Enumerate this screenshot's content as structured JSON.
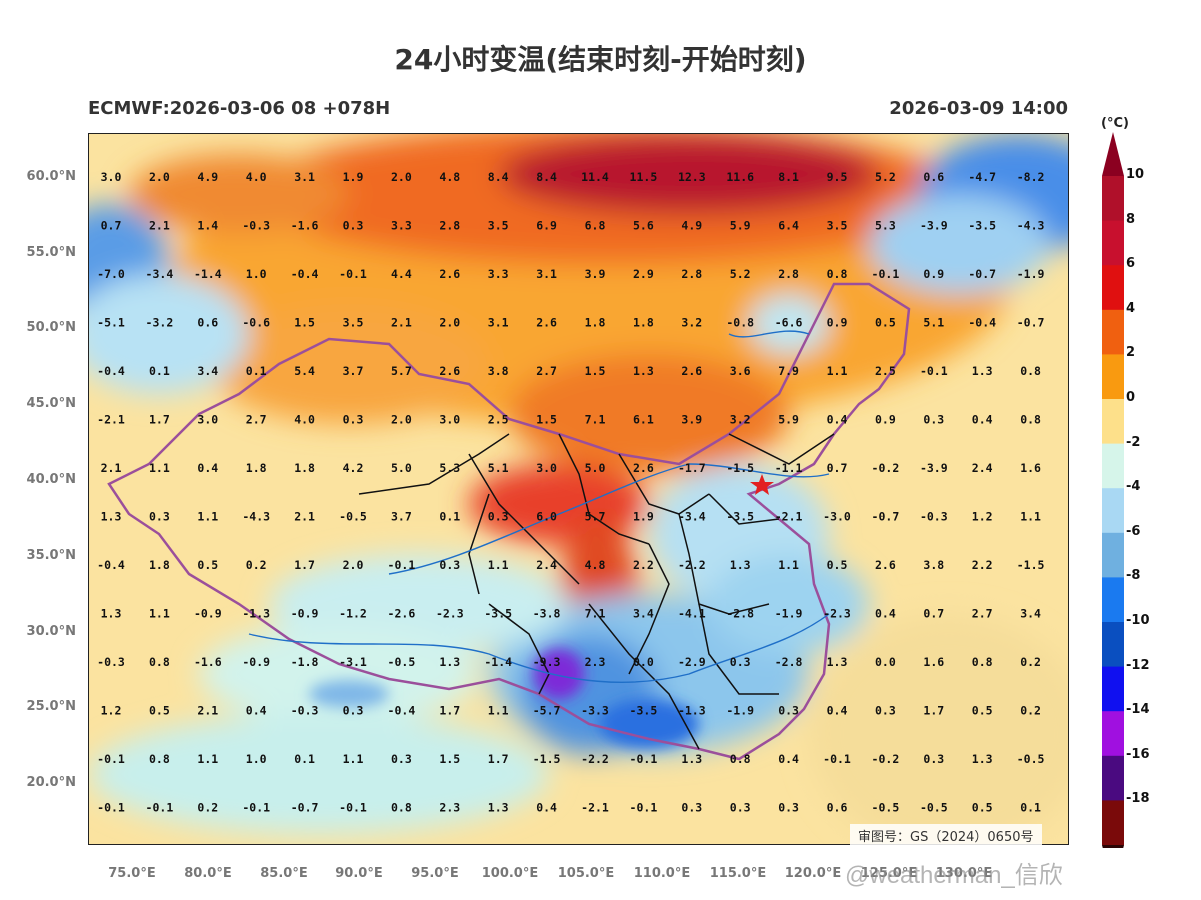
{
  "title": "24小时变温(结束时刻-开始时刻)",
  "subtitle_left": "ECMWF:2026-03-06 08 +078H",
  "subtitle_right": "2026-03-09 14:00",
  "lat_labels": [
    "60.0°N",
    "55.0°N",
    "50.0°N",
    "45.0°N",
    "40.0°N",
    "35.0°N",
    "30.0°N",
    "25.0°N",
    "20.0°N"
  ],
  "lon_labels": [
    "75.0°E",
    "80.0°E",
    "85.0°E",
    "90.0°E",
    "95.0°E",
    "100.0°E",
    "105.0°E",
    "110.0°E",
    "115.0°E",
    "120.0°E",
    "125.0°E",
    "130.0°E"
  ],
  "colorbar": {
    "unit": "(°C)",
    "labels": [
      "10",
      "8",
      "6",
      "4",
      "2",
      "0",
      "-2",
      "-4",
      "-6",
      "-8",
      "-10",
      "-12",
      "-14",
      "-16",
      "-18"
    ],
    "colors": [
      "#b0102a",
      "#c8102e",
      "#e01010",
      "#f06010",
      "#f99a10",
      "#fde08a",
      "#d6f5ea",
      "#a9d8f3",
      "#6fb0e0",
      "#1a7af0",
      "#0a4fc0",
      "#1010f0",
      "#a010e0",
      "#4a0a80",
      "#7a0a0a"
    ],
    "top_color": "#8b0020",
    "bottom_color": "#2b0505"
  },
  "grid_values": [
    [
      "3.0",
      "2.0",
      "4.9",
      "4.0",
      "3.1",
      "1.9",
      "2.0",
      "4.8",
      "8.4",
      "8.4",
      "11.4",
      "11.5",
      "12.3",
      "11.6",
      "8.1",
      "9.5",
      "5.2",
      "0.6",
      "-4.7",
      "-8.2"
    ],
    [
      "0.7",
      "2.1",
      "1.4",
      "-0.3",
      "-1.6",
      "0.3",
      "3.3",
      "2.8",
      "3.5",
      "6.9",
      "6.8",
      "5.6",
      "4.9",
      "5.9",
      "6.4",
      "3.5",
      "5.3",
      "-3.9",
      "-3.5",
      "-4.3"
    ],
    [
      "-7.0",
      "-3.4",
      "-1.4",
      "1.0",
      "-0.4",
      "-0.1",
      "4.4",
      "2.6",
      "3.3",
      "3.1",
      "3.9",
      "2.9",
      "2.8",
      "5.2",
      "2.8",
      "0.8",
      "-0.1",
      "0.9",
      "-0.7",
      "-1.9"
    ],
    [
      "-5.1",
      "-3.2",
      "0.6",
      "-0.6",
      "1.5",
      "3.5",
      "2.1",
      "2.0",
      "3.1",
      "2.6",
      "1.8",
      "1.8",
      "3.2",
      "-0.8",
      "-6.6",
      "0.9",
      "0.5",
      "5.1",
      "-0.4",
      "-0.7"
    ],
    [
      "-0.4",
      "0.1",
      "3.4",
      "0.1",
      "5.4",
      "3.7",
      "5.7",
      "2.6",
      "3.8",
      "2.7",
      "1.5",
      "1.3",
      "2.6",
      "3.6",
      "7.9",
      "1.1",
      "2.5",
      "-0.1",
      "1.3",
      "0.8"
    ],
    [
      "-2.1",
      "1.7",
      "3.0",
      "2.7",
      "4.0",
      "0.3",
      "2.0",
      "3.0",
      "2.5",
      "1.5",
      "7.1",
      "6.1",
      "3.9",
      "3.2",
      "5.9",
      "0.4",
      "0.9",
      "0.3",
      "0.4",
      "0.8"
    ],
    [
      "2.1",
      "1.1",
      "0.4",
      "1.8",
      "1.8",
      "4.2",
      "5.0",
      "5.3",
      "5.1",
      "3.0",
      "5.0",
      "2.6",
      "-1.7",
      "-1.5",
      "-1.1",
      "0.7",
      "-0.2",
      "-3.9",
      "2.4",
      "1.6"
    ],
    [
      "1.3",
      "0.3",
      "1.1",
      "-4.3",
      "2.1",
      "-0.5",
      "3.7",
      "0.1",
      "0.3",
      "6.0",
      "5.7",
      "1.9",
      "-3.4",
      "-3.5",
      "-2.1",
      "-3.0",
      "-0.7",
      "-0.3",
      "1.2",
      "1.1"
    ],
    [
      "-0.4",
      "1.8",
      "0.5",
      "0.2",
      "1.7",
      "2.0",
      "-0.1",
      "0.3",
      "1.1",
      "2.4",
      "4.8",
      "2.2",
      "-2.2",
      "1.3",
      "1.1",
      "0.5",
      "2.6",
      "3.8",
      "2.2",
      "-1.5"
    ],
    [
      "1.3",
      "1.1",
      "-0.9",
      "-1.3",
      "-0.9",
      "-1.2",
      "-2.6",
      "-2.3",
      "-3.5",
      "-3.8",
      "7.1",
      "3.4",
      "-4.1",
      "-2.8",
      "-1.9",
      "-2.3",
      "0.4",
      "0.7",
      "2.7",
      "3.4"
    ],
    [
      "-0.3",
      "0.8",
      "-1.6",
      "-0.9",
      "-1.8",
      "-3.1",
      "-0.5",
      "1.3",
      "-1.4",
      "-9.3",
      "2.3",
      "0.0",
      "-2.9",
      "0.3",
      "-2.8",
      "1.3",
      "0.0",
      "1.6",
      "0.8",
      "0.2"
    ],
    [
      "1.2",
      "0.5",
      "2.1",
      "0.4",
      "-0.3",
      "0.3",
      "-0.4",
      "1.7",
      "1.1",
      "-5.7",
      "-3.3",
      "-3.5",
      "-1.3",
      "-1.9",
      "0.3",
      "0.4",
      "0.3",
      "1.7",
      "0.5",
      "0.2"
    ],
    [
      "-0.1",
      "0.8",
      "1.1",
      "1.0",
      "0.1",
      "1.1",
      "0.3",
      "1.5",
      "1.7",
      "-1.5",
      "-2.2",
      "-0.1",
      "1.3",
      "0.8",
      "0.4",
      "-0.1",
      "-0.2",
      "0.3",
      "1.3",
      "-0.5"
    ],
    [
      "-0.1",
      "-0.1",
      "0.2",
      "-0.1",
      "-0.7",
      "-0.1",
      "0.8",
      "2.3",
      "1.3",
      "0.4",
      "-2.1",
      "-0.1",
      "0.3",
      "0.3",
      "0.3",
      "0.6",
      "-0.5",
      "-0.5",
      "0.5",
      "0.1"
    ]
  ],
  "approval_text": "审图号：GS（2024）0650号",
  "watermark": "@weatherman_信欣"
}
